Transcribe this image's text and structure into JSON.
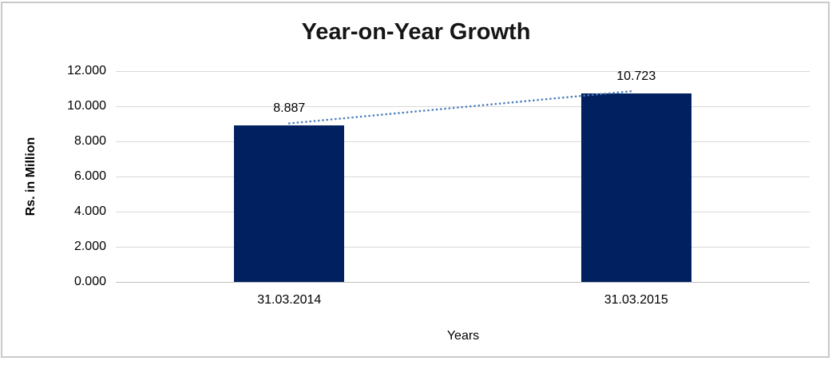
{
  "frame": {
    "border_color": "#c9c9c9",
    "background": "#ffffff"
  },
  "chart_data": {
    "type": "bar",
    "title": "Year-on-Year Growth",
    "xlabel": "Years",
    "ylabel": "Rs. in Million",
    "categories": [
      "31.03.2014",
      "31.03.2015"
    ],
    "values": [
      8.887,
      10.723
    ],
    "data_labels": [
      "8.887",
      "10.723"
    ],
    "ylim": [
      0,
      12
    ],
    "yticks": [
      0,
      2,
      4,
      6,
      8,
      10,
      12
    ],
    "ytick_labels": [
      "0.000",
      "2.000",
      "4.000",
      "6.000",
      "8.000",
      "10.000",
      "12.000"
    ],
    "grid": true,
    "legend_position": "none",
    "bar_color": "#002060",
    "gridline_color": "#d9d9d9",
    "axis_line_color": "#bfbfbf",
    "trendline": {
      "type": "linear",
      "style": "dotted",
      "color": "#4a7ebb"
    }
  }
}
